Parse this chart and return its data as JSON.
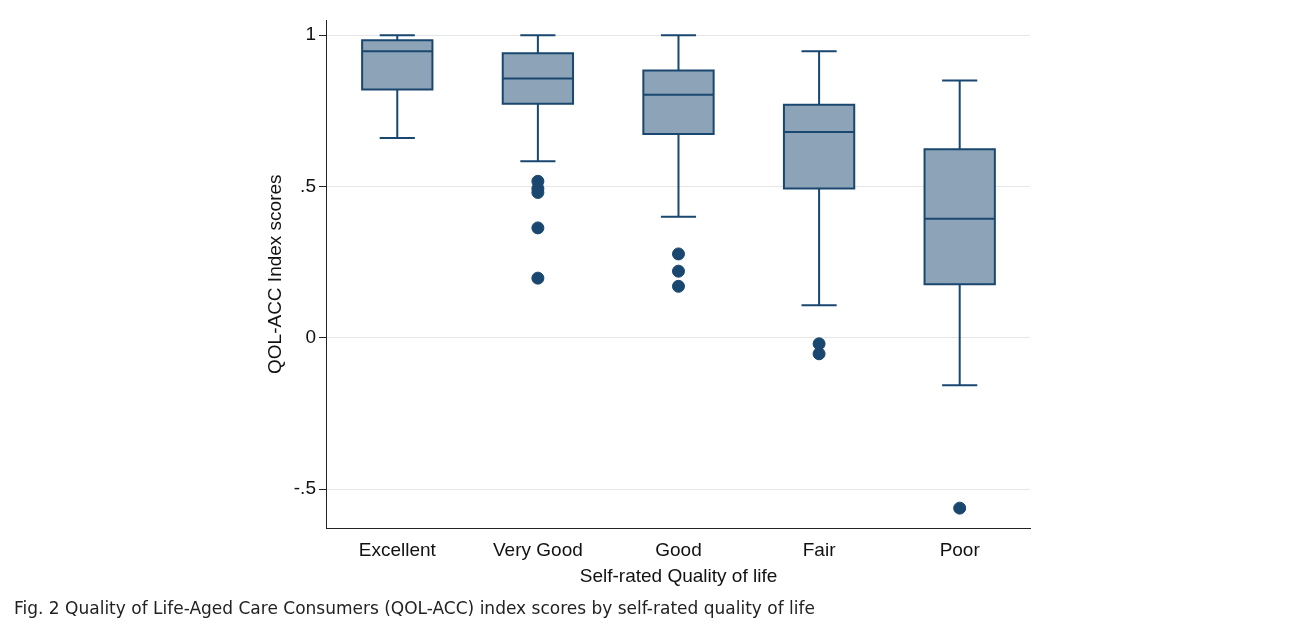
{
  "chart_data": {
    "type": "box",
    "xlabel": "Self-rated Quality of life",
    "ylabel": "QOL-ACC Index scores",
    "categories": [
      "Excellent",
      "Very Good",
      "Good",
      "Fair",
      "Poor"
    ],
    "color": "#1a476f",
    "boxes": [
      {
        "low": 0.66,
        "q1": 0.82,
        "median": 0.947,
        "q3": 0.983,
        "high": 1.0
      },
      {
        "low": 0.583,
        "q1": 0.773,
        "median": 0.857,
        "q3": 0.94,
        "high": 1.0,
        "outliers": [
          0.517,
          0.493,
          0.48,
          0.363,
          0.197
        ]
      },
      {
        "low": 0.4,
        "q1": 0.673,
        "median": 0.803,
        "q3": 0.883,
        "high": 1.0,
        "outliers": [
          0.277,
          0.22,
          0.17
        ]
      },
      {
        "low": 0.107,
        "q1": 0.493,
        "median": 0.68,
        "q3": 0.77,
        "high": 0.947,
        "outliers": [
          -0.02,
          -0.053
        ]
      },
      {
        "low": -0.157,
        "q1": 0.177,
        "median": 0.393,
        "q3": 0.623,
        "high": 0.85,
        "outliers": [
          -0.563
        ]
      }
    ],
    "ylim": [
      -0.63,
      1.05
    ],
    "yticks": [
      {
        "value": -0.5,
        "label": "-.5"
      },
      0,
      {
        "value": 0.5,
        "label": ".5"
      },
      1
    ],
    "grid": "y",
    "annotations": [
      "Fig. 2  Quality of Life-Aged Care Consumers (QOL-ACC) index scores by self-rated quality of life"
    ]
  }
}
